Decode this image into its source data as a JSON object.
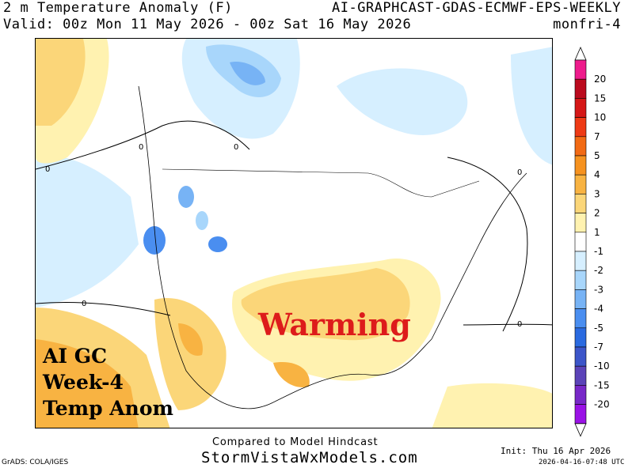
{
  "header": {
    "title_left": "2 m Temperature Anomaly (F)",
    "title_right": "AI-GRAPHCAST-GDAS-ECMWF-EPS-WEEKLY",
    "valid_left": "Valid: 00z Mon 11 May 2026 - 00z Sat 16 May 2026",
    "valid_right": "monfri-4"
  },
  "overlay": {
    "warming_label": "Warming",
    "box_lines": [
      "AI GC",
      "Week-4",
      "Temp Anom"
    ]
  },
  "footer": {
    "compared": "Compared to Model Hindcast",
    "site": "StormVistaWxModels.com",
    "grads": "GrADS: COLA/IGES",
    "init": "Init: Thu 16 Apr 2026",
    "stamp": "2026-04-16-07:48 UTC"
  },
  "colorbar": {
    "ticks": [
      "20",
      "15",
      "10",
      "7",
      "5",
      "4",
      "3",
      "2",
      "1",
      "-1",
      "-2",
      "-3",
      "-4",
      "-5",
      "-7",
      "-10",
      "-15",
      "-20"
    ],
    "colors": [
      "#ee1b8c",
      "#bb0a1e",
      "#d51717",
      "#ee3a15",
      "#f26a14",
      "#f6921f",
      "#f8b342",
      "#fbd679",
      "#fff2b0",
      "#ffffff",
      "#d6efff",
      "#a8d6fb",
      "#77b3f5",
      "#4a8ef0",
      "#2a6ae0",
      "#3c55c9",
      "#5b43b8",
      "#7828c8",
      "#9a12e6"
    ]
  },
  "map_contour_labels": [
    "0",
    "0",
    "0",
    "0",
    "0",
    "0"
  ]
}
